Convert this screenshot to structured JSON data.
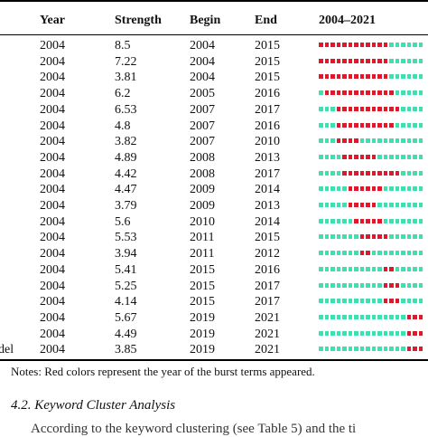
{
  "table": {
    "headers": {
      "year": "Year",
      "strength": "Strength",
      "begin": "Begin",
      "end": "End",
      "span": "2004–2021"
    },
    "span_years": [
      2004,
      2021
    ],
    "colors": {
      "burst": "#e0192a",
      "normal": "#3fe0b0"
    },
    "rows": [
      {
        "keyword": "",
        "year": "2004",
        "strength": "8.5",
        "begin": "2004",
        "end": "2015"
      },
      {
        "keyword": "",
        "year": "2004",
        "strength": "7.22",
        "begin": "2004",
        "end": "2015"
      },
      {
        "keyword": "",
        "year": "2004",
        "strength": "3.81",
        "begin": "2004",
        "end": "2015"
      },
      {
        "keyword": "",
        "year": "2004",
        "strength": "6.2",
        "begin": "2005",
        "end": "2016"
      },
      {
        "keyword": "",
        "year": "2004",
        "strength": "6.53",
        "begin": "2007",
        "end": "2017"
      },
      {
        "keyword": "",
        "year": "2004",
        "strength": "4.8",
        "begin": "2007",
        "end": "2016"
      },
      {
        "keyword": "",
        "year": "2004",
        "strength": "3.82",
        "begin": "2007",
        "end": "2010"
      },
      {
        "keyword": "",
        "year": "2004",
        "strength": "4.89",
        "begin": "2008",
        "end": "2013"
      },
      {
        "keyword": "",
        "year": "2004",
        "strength": "4.42",
        "begin": "2008",
        "end": "2017"
      },
      {
        "keyword": "",
        "year": "2004",
        "strength": "4.47",
        "begin": "2009",
        "end": "2014"
      },
      {
        "keyword": "",
        "year": "2004",
        "strength": "3.79",
        "begin": "2009",
        "end": "2013"
      },
      {
        "keyword": "",
        "year": "2004",
        "strength": "5.6",
        "begin": "2010",
        "end": "2014"
      },
      {
        "keyword": "",
        "year": "2004",
        "strength": "5.53",
        "begin": "2011",
        "end": "2015"
      },
      {
        "keyword": "",
        "year": "2004",
        "strength": "3.94",
        "begin": "2011",
        "end": "2012"
      },
      {
        "keyword": "",
        "year": "2004",
        "strength": "5.41",
        "begin": "2015",
        "end": "2016"
      },
      {
        "keyword": "",
        "year": "2004",
        "strength": "5.25",
        "begin": "2015",
        "end": "2017"
      },
      {
        "keyword": "",
        "year": "2004",
        "strength": "4.14",
        "begin": "2015",
        "end": "2017"
      },
      {
        "keyword": "",
        "year": "2004",
        "strength": "5.67",
        "begin": "2019",
        "end": "2021"
      },
      {
        "keyword": "",
        "year": "2004",
        "strength": "4.49",
        "begin": "2019",
        "end": "2021"
      },
      {
        "keyword": "del",
        "year": "2004",
        "strength": "3.85",
        "begin": "2019",
        "end": "2021"
      }
    ]
  },
  "notes": "Notes: Red colors represent the year of the burst terms appeared.",
  "section_heading": "4.2. Keyword Cluster Analysis",
  "body_fragment": "According to the keyword clustering (see Table 5) and the ti"
}
